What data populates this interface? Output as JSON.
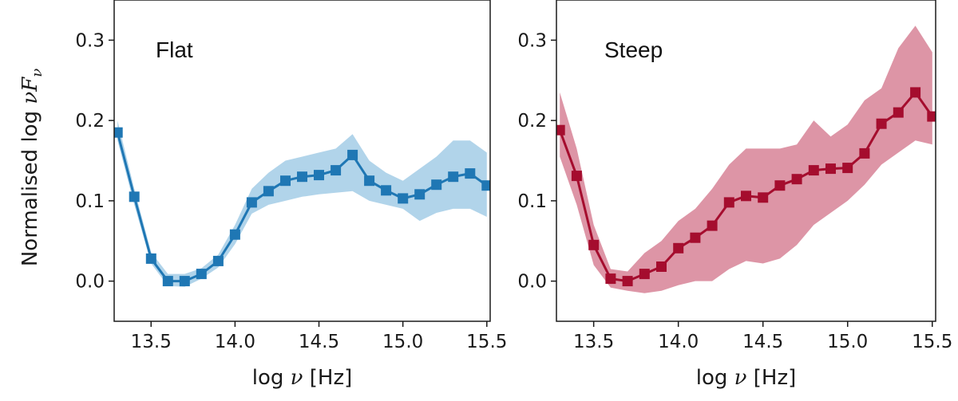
{
  "chart_data": [
    {
      "type": "line",
      "title": "Flat",
      "xlabel": "log ν [Hz]",
      "ylabel": "Normalised log νF_ν",
      "xlim": [
        13.28,
        15.52
      ],
      "ylim": [
        -0.05,
        0.35
      ],
      "xticks": [
        13.5,
        14.0,
        14.5,
        15.0,
        15.5
      ],
      "xtick_labels": [
        "13.5",
        "14.0",
        "14.5",
        "15.0",
        "15.5"
      ],
      "yticks": [
        0.0,
        0.1,
        0.2,
        0.3
      ],
      "ytick_labels": [
        "0.0",
        "0.1",
        "0.2",
        "0.3"
      ],
      "color": "#1f77b4",
      "band_color": "#a9cfe8",
      "x": [
        13.3,
        13.4,
        13.5,
        13.6,
        13.7,
        13.8,
        13.9,
        14.0,
        14.1,
        14.2,
        14.3,
        14.4,
        14.5,
        14.6,
        14.7,
        14.8,
        14.9,
        15.0,
        15.1,
        15.2,
        15.3,
        15.4,
        15.5
      ],
      "y": [
        0.185,
        0.105,
        0.028,
        0.0,
        0.0,
        0.009,
        0.025,
        0.058,
        0.098,
        0.112,
        0.125,
        0.13,
        0.132,
        0.138,
        0.157,
        0.125,
        0.113,
        0.103,
        0.108,
        0.12,
        0.13,
        0.134,
        0.119
      ],
      "y_lower": [
        0.175,
        0.095,
        0.022,
        -0.006,
        -0.007,
        0.003,
        0.017,
        0.046,
        0.084,
        0.095,
        0.1,
        0.105,
        0.108,
        0.11,
        0.112,
        0.1,
        0.095,
        0.09,
        0.075,
        0.085,
        0.09,
        0.09,
        0.08
      ],
      "y_upper": [
        0.2,
        0.115,
        0.036,
        0.009,
        0.009,
        0.016,
        0.033,
        0.07,
        0.115,
        0.135,
        0.15,
        0.155,
        0.16,
        0.165,
        0.183,
        0.15,
        0.135,
        0.125,
        0.14,
        0.155,
        0.175,
        0.175,
        0.16
      ]
    },
    {
      "type": "line",
      "title": "Steep",
      "xlabel": "log ν [Hz]",
      "ylabel": "",
      "xlim": [
        13.28,
        15.52
      ],
      "ylim": [
        -0.05,
        0.35
      ],
      "xticks": [
        13.5,
        14.0,
        14.5,
        15.0,
        15.5
      ],
      "xtick_labels": [
        "13.5",
        "14.0",
        "14.5",
        "15.0",
        "15.5"
      ],
      "yticks": [
        0.0,
        0.1,
        0.2,
        0.3
      ],
      "ytick_labels": [
        "0.0",
        "0.1",
        "0.2",
        "0.3"
      ],
      "color": "#a50d2e",
      "band_color": "#d98a9c",
      "x": [
        13.3,
        13.4,
        13.5,
        13.6,
        13.7,
        13.8,
        13.9,
        14.0,
        14.1,
        14.2,
        14.3,
        14.4,
        14.5,
        14.6,
        14.7,
        14.8,
        14.9,
        15.0,
        15.1,
        15.2,
        15.3,
        15.4,
        15.5
      ],
      "y": [
        0.188,
        0.131,
        0.045,
        0.003,
        0.0,
        0.009,
        0.018,
        0.041,
        0.054,
        0.069,
        0.098,
        0.106,
        0.104,
        0.119,
        0.127,
        0.138,
        0.14,
        0.141,
        0.159,
        0.196,
        0.21,
        0.235,
        0.205
      ],
      "y_lower": [
        0.155,
        0.095,
        0.02,
        -0.008,
        -0.012,
        -0.015,
        -0.012,
        -0.005,
        0.0,
        0.0,
        0.015,
        0.025,
        0.022,
        0.028,
        0.045,
        0.07,
        0.085,
        0.1,
        0.12,
        0.145,
        0.16,
        0.175,
        0.17
      ],
      "y_upper": [
        0.235,
        0.165,
        0.07,
        0.015,
        0.012,
        0.035,
        0.05,
        0.075,
        0.09,
        0.115,
        0.145,
        0.165,
        0.165,
        0.165,
        0.17,
        0.2,
        0.18,
        0.195,
        0.225,
        0.24,
        0.29,
        0.318,
        0.285
      ]
    }
  ]
}
